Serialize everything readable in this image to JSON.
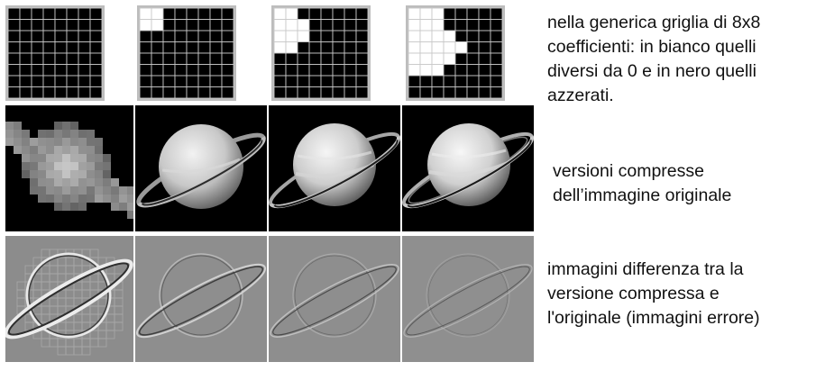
{
  "captions": {
    "grids": "nella generica griglia di 8x8\ncoefficienti: in bianco quelli\ndiversi da 0 e in nero quelli\nazzerati.",
    "compressed": "versioni compresse\ndell’immagine originale",
    "differences": "immagini differenza tra la\nversione compressa e\nl'originale (immagini errore)"
  },
  "coefficient_grids": [
    [
      [
        0,
        0,
        0,
        0,
        0,
        0,
        0,
        0
      ],
      [
        0,
        0,
        0,
        0,
        0,
        0,
        0,
        0
      ],
      [
        0,
        0,
        0,
        0,
        0,
        0,
        0,
        0
      ],
      [
        0,
        0,
        0,
        0,
        0,
        0,
        0,
        0
      ],
      [
        0,
        0,
        0,
        0,
        0,
        0,
        0,
        0
      ],
      [
        0,
        0,
        0,
        0,
        0,
        0,
        0,
        0
      ],
      [
        0,
        0,
        0,
        0,
        0,
        0,
        0,
        0
      ],
      [
        0,
        0,
        0,
        0,
        0,
        0,
        0,
        0
      ]
    ],
    [
      [
        1,
        1,
        0,
        0,
        0,
        0,
        0,
        0
      ],
      [
        1,
        1,
        0,
        0,
        0,
        0,
        0,
        0
      ],
      [
        0,
        0,
        0,
        0,
        0,
        0,
        0,
        0
      ],
      [
        0,
        0,
        0,
        0,
        0,
        0,
        0,
        0
      ],
      [
        0,
        0,
        0,
        0,
        0,
        0,
        0,
        0
      ],
      [
        0,
        0,
        0,
        0,
        0,
        0,
        0,
        0
      ],
      [
        0,
        0,
        0,
        0,
        0,
        0,
        0,
        0
      ],
      [
        0,
        0,
        0,
        0,
        0,
        0,
        0,
        0
      ]
    ],
    [
      [
        1,
        1,
        0,
        0,
        0,
        0,
        0,
        0
      ],
      [
        1,
        1,
        1,
        0,
        0,
        0,
        0,
        0
      ],
      [
        1,
        1,
        1,
        0,
        0,
        0,
        0,
        0
      ],
      [
        1,
        1,
        0,
        0,
        0,
        0,
        0,
        0
      ],
      [
        0,
        0,
        0,
        0,
        0,
        0,
        0,
        0
      ],
      [
        0,
        0,
        0,
        0,
        0,
        0,
        0,
        0
      ],
      [
        0,
        0,
        0,
        0,
        0,
        0,
        0,
        0
      ],
      [
        0,
        0,
        0,
        0,
        0,
        0,
        0,
        0
      ]
    ],
    [
      [
        1,
        1,
        1,
        0,
        0,
        0,
        0,
        0
      ],
      [
        1,
        1,
        1,
        0,
        0,
        0,
        0,
        0
      ],
      [
        1,
        1,
        1,
        1,
        0,
        0,
        0,
        0
      ],
      [
        1,
        1,
        1,
        1,
        1,
        0,
        0,
        0
      ],
      [
        1,
        1,
        1,
        1,
        0,
        0,
        0,
        0
      ],
      [
        1,
        1,
        1,
        0,
        0,
        0,
        0,
        0
      ],
      [
        0,
        0,
        0,
        0,
        0,
        0,
        0,
        0
      ],
      [
        0,
        0,
        0,
        0,
        0,
        0,
        0,
        0
      ]
    ]
  ],
  "colors": {
    "on_cell": "#ffffff",
    "off_cell": "#000000",
    "grid_line": "#c8c8c8",
    "error_background": "#8c8c8c",
    "text": "#111111"
  }
}
